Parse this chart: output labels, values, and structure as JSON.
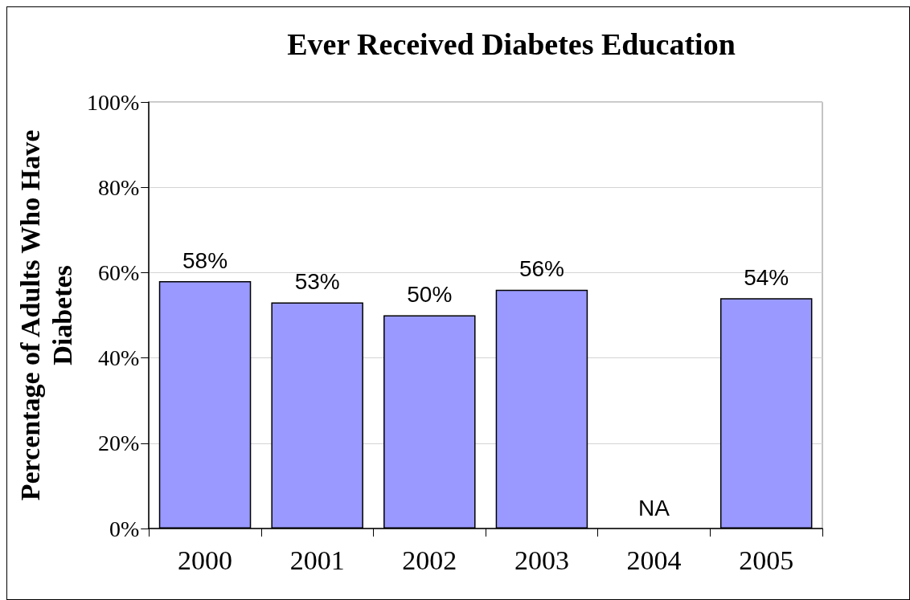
{
  "chart_data": {
    "type": "bar",
    "title": "Ever Received Diabetes Education",
    "ylabel": "Percentage of Adults Who Have Diabetes",
    "categories": [
      "2000",
      "2001",
      "2002",
      "2003",
      "2004",
      "2005"
    ],
    "values": [
      58,
      53,
      50,
      56,
      null,
      54
    ],
    "value_labels": [
      "58%",
      "53%",
      "50%",
      "56%",
      "NA",
      "54%"
    ],
    "color": "#9999ff",
    "ylim": [
      0,
      100
    ],
    "yticks": [
      {
        "value": 0,
        "label": "0%"
      },
      {
        "value": 20,
        "label": "20%"
      },
      {
        "value": 40,
        "label": "40%"
      },
      {
        "value": 60,
        "label": "60%"
      },
      {
        "value": 80,
        "label": "80%"
      },
      {
        "value": 100,
        "label": "100%"
      }
    ],
    "grid": "y"
  }
}
